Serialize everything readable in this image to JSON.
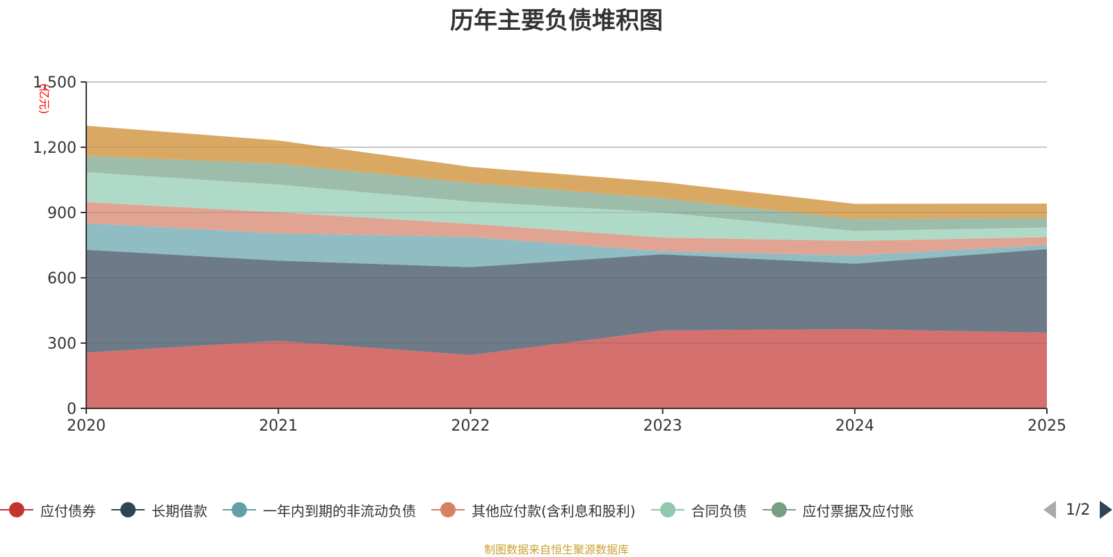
{
  "chart_data": {
    "type": "area",
    "stacked": true,
    "title": "历年主要负债堆积图",
    "ylabel": "(亿元)",
    "xlabel": "",
    "x": [
      "2020",
      "2021",
      "2022",
      "2023",
      "2024",
      "2025"
    ],
    "ylim": [
      0,
      1500
    ],
    "yticks": [
      0,
      300,
      600,
      900,
      1200,
      1500
    ],
    "ytick_labels": [
      "0",
      "300",
      "600",
      "900",
      "1,200",
      "1,500"
    ],
    "grid": true,
    "legend_position": "bottom",
    "series": [
      {
        "name": "应付债券",
        "color": "#c23531",
        "fill": "#d4706e",
        "values": [
          256,
          310,
          245,
          358,
          364,
          348
        ]
      },
      {
        "name": "长期借款",
        "color": "#2f4554",
        "fill": "#6c7b87",
        "values": [
          473,
          369,
          404,
          350,
          301,
          384
        ]
      },
      {
        "name": "一年内到期的非流动负债",
        "color": "#61a0a8",
        "fill": "#90bcc3",
        "values": [
          122,
          125,
          139,
          14,
          38,
          19
        ]
      },
      {
        "name": "其他应付款(含利息和股利)",
        "color": "#d48265",
        "fill": "#e1a493",
        "values": [
          97,
          97,
          60,
          63,
          67,
          36
        ]
      },
      {
        "name": "合同负债",
        "color": "#91c7ae",
        "fill": "#b0dac8",
        "values": [
          137,
          127,
          102,
          115,
          45,
          44
        ]
      },
      {
        "name": "应付票据及应付账",
        "color": "#749f83",
        "fill": "#9ebcaa",
        "values": [
          76,
          96,
          86,
          65,
          55,
          45
        ]
      },
      {
        "name": "",
        "color": "#ca8622",
        "fill": "#d9a964",
        "values": [
          138,
          107,
          74,
          75,
          70,
          65
        ]
      }
    ]
  },
  "legend": {
    "items": [
      "应付债券",
      "长期借款",
      "一年内到期的非流动负债",
      "其他应付款(含利息和股利)",
      "合同负债",
      "应付票据及应付账"
    ],
    "page": "1/2"
  },
  "source_note": "制图数据来自恒生聚源数据库"
}
